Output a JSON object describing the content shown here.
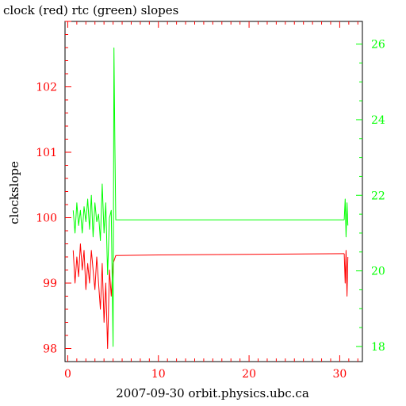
{
  "chart_data": {
    "type": "line",
    "title": "clock (red) rtc (green) slopes",
    "xlabel": "2007-09-30 orbit.physics.ubc.ca",
    "ylabel": "clockslope",
    "y2label": "",
    "xlim": [
      -0.3,
      32.5
    ],
    "ylim": [
      97.8,
      103.0
    ],
    "y2lim": [
      17.6,
      26.6
    ],
    "xticks": [
      0,
      10,
      20,
      30
    ],
    "yticks": [
      98,
      99,
      100,
      101,
      102
    ],
    "y2ticks": [
      18,
      20,
      22,
      24,
      26
    ],
    "grid": false,
    "colors": {
      "clock": "#ff0000",
      "rtc": "#00ff00",
      "axes": "#000000"
    },
    "series": [
      {
        "axis": "left",
        "color": "#ff0000",
        "segments": [
          {
            "x": [
              0.6,
              0.8,
              1.0,
              1.2,
              1.4,
              1.6,
              1.8,
              2.0,
              2.2,
              2.4,
              2.6,
              2.8,
              3.0,
              3.2,
              3.4,
              3.6,
              3.8,
              4.0,
              4.2,
              4.4,
              4.6,
              4.8,
              5.0,
              5.3,
              10.0,
              20.0,
              30.5
            ],
            "y": [
              99.5,
              99.0,
              99.4,
              99.1,
              99.6,
              99.2,
              99.5,
              98.9,
              99.3,
              99.0,
              99.5,
              99.2,
              98.9,
              99.4,
              99.0,
              98.6,
              99.3,
              98.4,
              99.0,
              98.0,
              99.2,
              98.8,
              99.3,
              99.42,
              99.43,
              99.44,
              99.45
            ]
          },
          {
            "x": [
              30.5,
              30.6,
              30.7,
              30.8,
              30.9
            ],
            "y": [
              99.45,
              99.0,
              99.5,
              98.8,
              99.4
            ]
          }
        ]
      },
      {
        "axis": "right",
        "color": "#00ff00",
        "segments": [
          {
            "x": [
              0.6,
              0.8,
              1.0,
              1.2,
              1.4,
              1.6,
              1.8,
              2.0,
              2.2,
              2.4,
              2.6,
              2.8,
              3.0,
              3.2,
              3.4,
              3.6,
              3.8,
              4.0,
              4.2,
              4.4,
              4.6,
              4.8,
              5.0,
              5.1,
              5.2,
              5.3,
              10.0,
              20.0,
              30.5
            ],
            "y": [
              21.6,
              21.0,
              21.8,
              21.2,
              21.6,
              21.0,
              21.7,
              21.3,
              21.9,
              21.1,
              22.0,
              20.9,
              21.8,
              21.3,
              21.5,
              20.8,
              22.3,
              21.0,
              21.8,
              19.9,
              21.4,
              21.6,
              18.0,
              25.9,
              23.3,
              21.35,
              21.35,
              21.35,
              21.35
            ]
          },
          {
            "x": [
              30.5,
              30.6,
              30.7,
              30.8,
              30.9
            ],
            "y": [
              21.35,
              21.9,
              20.9,
              21.8,
              21.2
            ]
          }
        ]
      }
    ]
  }
}
